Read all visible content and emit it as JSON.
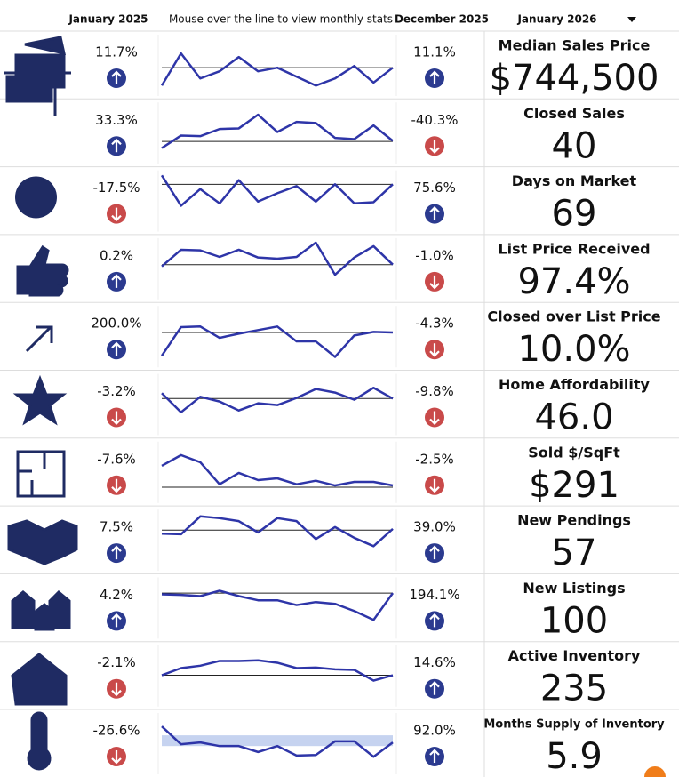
{
  "header": {
    "start": "January 2025",
    "hint": "Mouse over the line to view monthly stats",
    "end": "December 2025",
    "current": "January 2026"
  },
  "rows": [
    {
      "label": "Median Sales Price",
      "value": "$744,500",
      "start_change": "11.7%",
      "start_direction": "up",
      "end_change": "11.1%",
      "end_direction": "up",
      "trend": [
        16,
        70,
        28,
        40,
        64,
        40,
        46,
        31,
        16,
        28,
        49,
        21,
        46
      ],
      "baseline": 46
    },
    {
      "label": "Closed Sales",
      "value": "40",
      "start_change": "33.3%",
      "start_direction": "up",
      "end_change": "-40.3%",
      "end_direction": "down",
      "trend": [
        25,
        46,
        45,
        57,
        58,
        81,
        52,
        69,
        67,
        42,
        40,
        63,
        37
      ],
      "baseline": 36
    },
    {
      "label": "Days on Market",
      "value": "69",
      "start_change": "-17.5%",
      "start_direction": "down",
      "end_change": "75.6%",
      "end_direction": "up",
      "trend": [
        93,
        42,
        70,
        46,
        85,
        49,
        63,
        75,
        49,
        78,
        46,
        48,
        78
      ],
      "baseline": 78
    },
    {
      "label": "List Price Received",
      "value": "97.4%",
      "start_change": "0.2%",
      "start_direction": "up",
      "end_change": "-1.0%",
      "end_direction": "down",
      "trend": [
        54,
        82,
        81,
        70,
        82,
        69,
        67,
        70,
        94,
        40,
        69,
        88,
        57
      ],
      "baseline": 57
    },
    {
      "label": "Closed over List Price",
      "value": "10.0%",
      "start_change": "200.0%",
      "start_direction": "up",
      "end_change": "-4.3%",
      "end_direction": "down",
      "trend": [
        18,
        66,
        67,
        48,
        55,
        61,
        67,
        42,
        42,
        16,
        52,
        58,
        57
      ],
      "baseline": 57
    },
    {
      "label": "Home Affordability",
      "value": "46.0",
      "start_change": "-3.2%",
      "start_direction": "down",
      "end_change": "-9.8%",
      "end_direction": "down",
      "trend": [
        69,
        37,
        63,
        55,
        40,
        52,
        49,
        61,
        76,
        70,
        58,
        78,
        60
      ],
      "baseline": 60
    },
    {
      "label": "Sold $/SqFt",
      "value": "$291",
      "start_change": "-7.6%",
      "start_direction": "down",
      "end_change": "-2.5%",
      "end_direction": "down",
      "trend": [
        61,
        79,
        67,
        30,
        49,
        37,
        40,
        30,
        36,
        28,
        34,
        34,
        28
      ],
      "baseline": 25
    },
    {
      "label": "New Pendings",
      "value": "57",
      "start_change": "7.5%",
      "start_direction": "up",
      "end_change": "39.0%",
      "end_direction": "up",
      "trend": [
        61,
        60,
        90,
        87,
        82,
        63,
        87,
        82,
        52,
        72,
        54,
        40,
        69
      ],
      "baseline": 67
    },
    {
      "label": "New Listings",
      "value": "100",
      "start_change": "4.2%",
      "start_direction": "up",
      "end_change": "194.1%",
      "end_direction": "up",
      "trend": [
        73,
        72,
        70,
        79,
        70,
        63,
        63,
        55,
        60,
        57,
        45,
        30,
        75
      ],
      "baseline": 75
    },
    {
      "label": "Active Inventory",
      "value": "235",
      "start_change": "-2.1%",
      "start_direction": "down",
      "end_change": "14.6%",
      "end_direction": "up",
      "trend": [
        51,
        63,
        67,
        75,
        75,
        76,
        72,
        63,
        64,
        61,
        60,
        42,
        51
      ],
      "baseline": 51
    },
    {
      "label": "Months Supply of Inventory",
      "value": "5.9",
      "start_change": "-26.6%",
      "start_direction": "down",
      "end_change": "92.0%",
      "end_direction": "up",
      "trend": [
        79,
        49,
        52,
        46,
        46,
        36,
        46,
        30,
        31,
        54,
        54,
        28,
        52
      ],
      "band": [
        46,
        64
      ]
    }
  ]
}
